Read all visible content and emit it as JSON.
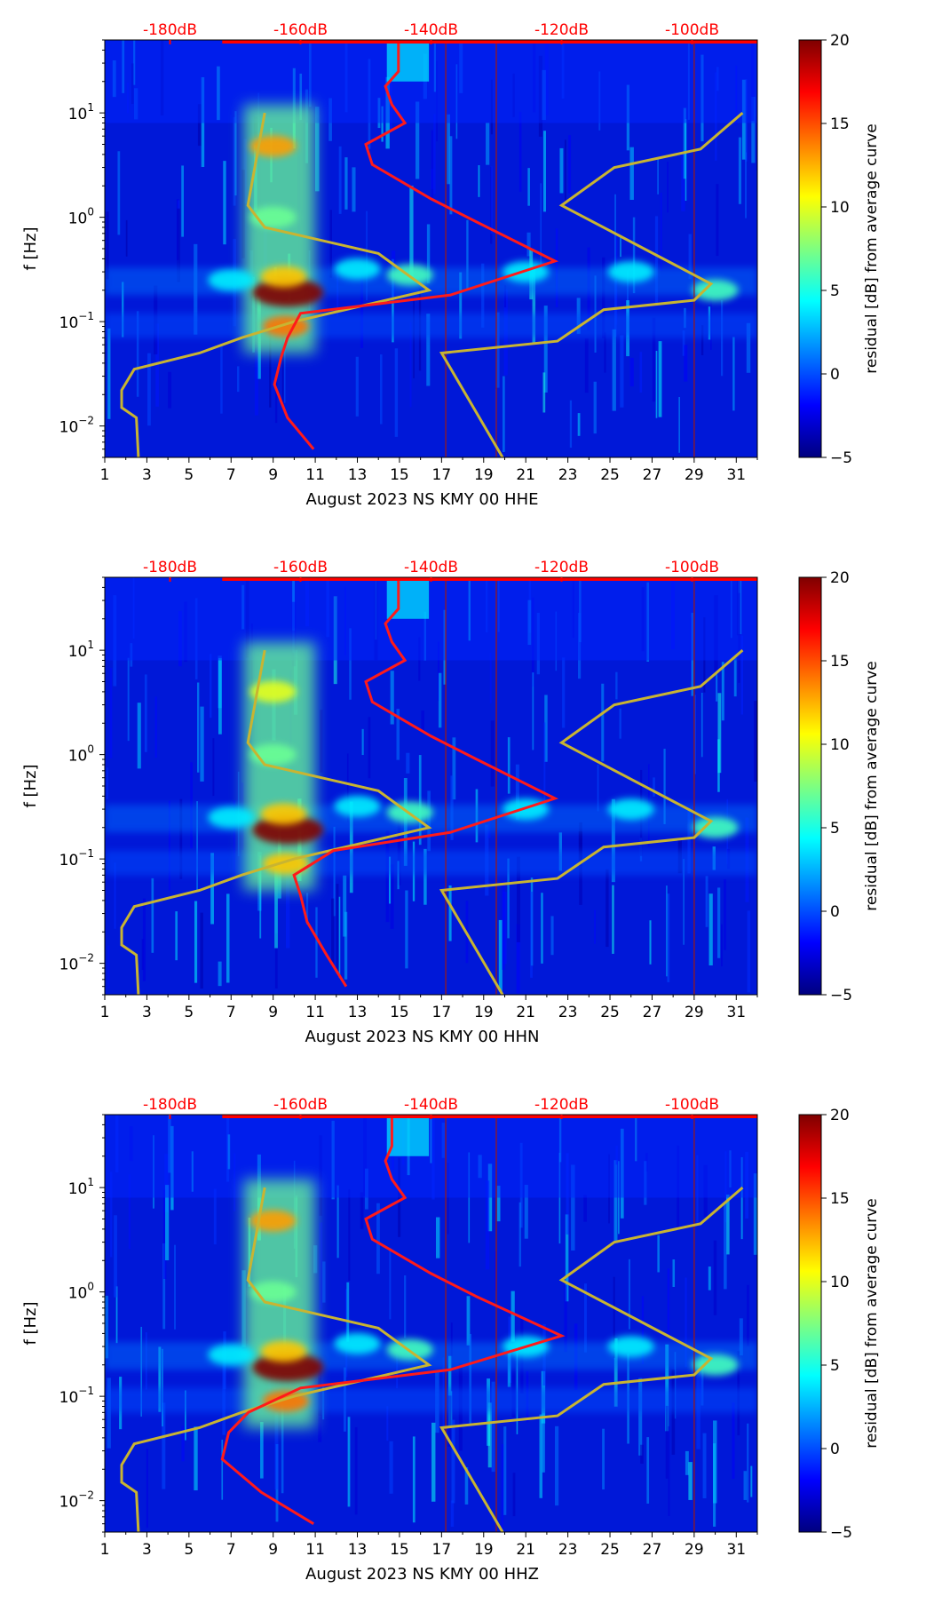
{
  "chart_data": [
    {
      "type": "heatmap",
      "xlabel": "August 2023 NS KMY 00 HHE",
      "ylabel": "f [Hz]",
      "colorbar_label": "residual [dB] from average curve",
      "x_ticks": [
        "1",
        "3",
        "5",
        "7",
        "9",
        "11",
        "13",
        "15",
        "17",
        "19",
        "21",
        "23",
        "25",
        "27",
        "29",
        "31"
      ],
      "xlim": [
        1,
        32
      ],
      "y_scale": "log",
      "ylim": [
        0.005,
        50
      ],
      "y_ticks": [
        {
          "base": "10",
          "exp": "1",
          "value": 10
        },
        {
          "base": "10",
          "exp": "0",
          "value": 1
        },
        {
          "base": "10",
          "exp": "−1",
          "value": 0.1
        },
        {
          "base": "10",
          "exp": "−2",
          "value": 0.01
        }
      ],
      "db_ticks": [
        "-180dB",
        "-160dB",
        "-140dB",
        "-120dB",
        "-100dB"
      ],
      "db_tick_values": [
        -180,
        -160,
        -140,
        -120,
        -100
      ],
      "db_range": [
        -190,
        -90
      ],
      "colorbar_ticks": [
        "20",
        "15",
        "10",
        "5",
        "0",
        "−5"
      ],
      "colorbar_values": [
        20,
        15,
        10,
        5,
        0,
        -5
      ],
      "clim": [
        -5,
        20
      ],
      "colormap": "jet",
      "red_curve": {
        "color": "#ff1a1a",
        "db": [
          -145,
          -145,
          -147,
          -146,
          -144,
          -150,
          -149,
          -140,
          -133,
          -121,
          -137,
          -160,
          -162,
          -163,
          -164,
          -162,
          -158
        ],
        "freq": [
          50,
          25,
          18,
          12,
          8,
          5,
          3.2,
          1.5,
          0.9,
          0.38,
          0.18,
          0.12,
          0.07,
          0.045,
          0.025,
          0.012,
          0.006
        ]
      },
      "olive_curve": {
        "color": "#c8b432",
        "points": [
          [
            8.6,
            10
          ],
          [
            7.8,
            1.3
          ],
          [
            8.6,
            0.8
          ],
          [
            14,
            0.45
          ],
          [
            16.4,
            0.2
          ],
          [
            10,
            0.1
          ],
          [
            7.5,
            0.07
          ],
          [
            5.5,
            0.05
          ],
          [
            2.4,
            0.035
          ],
          [
            1.8,
            0.022
          ],
          [
            1.8,
            0.015
          ],
          [
            2.5,
            0.012
          ],
          [
            2.6,
            0.005
          ]
        ]
      },
      "olive_curve2": {
        "color": "#c8b432",
        "points": [
          [
            31.3,
            10
          ],
          [
            29.3,
            4.5
          ],
          [
            25.2,
            3
          ],
          [
            22.7,
            1.3
          ],
          [
            29.8,
            0.23
          ],
          [
            29,
            0.16
          ],
          [
            24.7,
            0.13
          ],
          [
            22.5,
            0.065
          ],
          [
            17,
            0.05
          ],
          [
            19.9,
            0.005
          ]
        ]
      },
      "hotspots": [
        [
          9.7,
          0.19,
          20
        ],
        [
          9.5,
          0.27,
          12
        ],
        [
          9.6,
          0.09,
          14
        ],
        [
          9,
          4.8,
          13
        ],
        [
          9,
          1,
          7
        ],
        [
          7,
          0.25,
          4
        ],
        [
          15.5,
          0.28,
          6
        ],
        [
          13,
          0.32,
          4
        ],
        [
          21,
          0.3,
          4
        ],
        [
          26,
          0.3,
          4
        ],
        [
          30,
          0.2,
          6
        ]
      ]
    },
    {
      "type": "heatmap",
      "xlabel": "August 2023 NS KMY 00 HHN",
      "ylabel": "f [Hz]",
      "colorbar_label": "residual [dB] from average curve",
      "x_ticks": [
        "1",
        "3",
        "5",
        "7",
        "9",
        "11",
        "13",
        "15",
        "17",
        "19",
        "21",
        "23",
        "25",
        "27",
        "29",
        "31"
      ],
      "xlim": [
        1,
        32
      ],
      "y_scale": "log",
      "ylim": [
        0.005,
        50
      ],
      "y_ticks": [
        {
          "base": "10",
          "exp": "1",
          "value": 10
        },
        {
          "base": "10",
          "exp": "0",
          "value": 1
        },
        {
          "base": "10",
          "exp": "−1",
          "value": 0.1
        },
        {
          "base": "10",
          "exp": "−2",
          "value": 0.01
        }
      ],
      "db_ticks": [
        "-180dB",
        "-160dB",
        "-140dB",
        "-120dB",
        "-100dB"
      ],
      "db_tick_values": [
        -180,
        -160,
        -140,
        -120,
        -100
      ],
      "db_range": [
        -190,
        -90
      ],
      "colorbar_ticks": [
        "20",
        "15",
        "10",
        "5",
        "0",
        "−5"
      ],
      "colorbar_values": [
        20,
        15,
        10,
        5,
        0,
        -5
      ],
      "clim": [
        -5,
        20
      ],
      "colormap": "jet",
      "red_curve": {
        "color": "#ff1a1a",
        "db": [
          -145,
          -145,
          -147,
          -146,
          -144,
          -150,
          -149,
          -140,
          -133,
          -121,
          -137,
          -155,
          -161,
          -160,
          -159,
          -156,
          -153
        ],
        "freq": [
          50,
          25,
          18,
          12,
          8,
          5,
          3.2,
          1.5,
          0.9,
          0.38,
          0.18,
          0.12,
          0.07,
          0.045,
          0.025,
          0.012,
          0.006
        ]
      },
      "olive_curve": {
        "color": "#c8b432",
        "points": [
          [
            8.6,
            10
          ],
          [
            7.8,
            1.3
          ],
          [
            8.6,
            0.8
          ],
          [
            14,
            0.45
          ],
          [
            16.4,
            0.2
          ],
          [
            10,
            0.1
          ],
          [
            7.5,
            0.07
          ],
          [
            5.5,
            0.05
          ],
          [
            2.4,
            0.035
          ],
          [
            1.8,
            0.022
          ],
          [
            1.8,
            0.015
          ],
          [
            2.5,
            0.012
          ],
          [
            2.6,
            0.005
          ]
        ]
      },
      "olive_curve2": {
        "color": "#c8b432",
        "points": [
          [
            31.3,
            10
          ],
          [
            29.3,
            4.5
          ],
          [
            25.2,
            3
          ],
          [
            22.7,
            1.3
          ],
          [
            29.8,
            0.23
          ],
          [
            29,
            0.16
          ],
          [
            24.7,
            0.13
          ],
          [
            22.5,
            0.065
          ],
          [
            17,
            0.05
          ],
          [
            19.9,
            0.005
          ]
        ]
      },
      "hotspots": [
        [
          9.7,
          0.19,
          20
        ],
        [
          9.5,
          0.27,
          12
        ],
        [
          9.6,
          0.09,
          12
        ],
        [
          9,
          4,
          10
        ],
        [
          9,
          1,
          7
        ],
        [
          7,
          0.25,
          4
        ],
        [
          15.5,
          0.28,
          6
        ],
        [
          13,
          0.32,
          4
        ],
        [
          21,
          0.3,
          4
        ],
        [
          26,
          0.3,
          4
        ],
        [
          30,
          0.2,
          6
        ]
      ]
    },
    {
      "type": "heatmap",
      "xlabel": "August 2023 NS KMY 00 HHZ",
      "ylabel": "f [Hz]",
      "colorbar_label": "residual [dB] from average curve",
      "x_ticks": [
        "1",
        "3",
        "5",
        "7",
        "9",
        "11",
        "13",
        "15",
        "17",
        "19",
        "21",
        "23",
        "25",
        "27",
        "29",
        "31"
      ],
      "xlim": [
        1,
        32
      ],
      "y_scale": "log",
      "ylim": [
        0.005,
        50
      ],
      "y_ticks": [
        {
          "base": "10",
          "exp": "1",
          "value": 10
        },
        {
          "base": "10",
          "exp": "0",
          "value": 1
        },
        {
          "base": "10",
          "exp": "−1",
          "value": 0.1
        },
        {
          "base": "10",
          "exp": "−2",
          "value": 0.01
        }
      ],
      "db_ticks": [
        "-180dB",
        "-160dB",
        "-140dB",
        "-120dB",
        "-100dB"
      ],
      "db_tick_values": [
        -180,
        -160,
        -140,
        -120,
        -100
      ],
      "db_range": [
        -190,
        -90
      ],
      "colorbar_ticks": [
        "20",
        "15",
        "10",
        "5",
        "0",
        "−5"
      ],
      "colorbar_values": [
        20,
        15,
        10,
        5,
        0,
        -5
      ],
      "clim": [
        -5,
        20
      ],
      "colormap": "jet",
      "red_curve": {
        "color": "#ff1a1a",
        "db": [
          -146,
          -146,
          -147,
          -146,
          -144,
          -150,
          -149,
          -140,
          -133,
          -120,
          -137,
          -160,
          -168,
          -171,
          -172,
          -166,
          -158
        ],
        "freq": [
          50,
          25,
          18,
          12,
          8,
          5,
          3.2,
          1.5,
          0.9,
          0.38,
          0.18,
          0.12,
          0.07,
          0.045,
          0.025,
          0.012,
          0.006
        ]
      },
      "olive_curve": {
        "color": "#c8b432",
        "points": [
          [
            8.6,
            10
          ],
          [
            7.8,
            1.3
          ],
          [
            8.6,
            0.8
          ],
          [
            14,
            0.45
          ],
          [
            16.4,
            0.2
          ],
          [
            10,
            0.1
          ],
          [
            7.5,
            0.07
          ],
          [
            5.5,
            0.05
          ],
          [
            2.4,
            0.035
          ],
          [
            1.8,
            0.022
          ],
          [
            1.8,
            0.015
          ],
          [
            2.5,
            0.012
          ],
          [
            2.6,
            0.005
          ]
        ]
      },
      "olive_curve2": {
        "color": "#c8b432",
        "points": [
          [
            31.3,
            10
          ],
          [
            29.3,
            4.5
          ],
          [
            25.2,
            3
          ],
          [
            22.7,
            1.3
          ],
          [
            29.8,
            0.23
          ],
          [
            29,
            0.16
          ],
          [
            24.7,
            0.13
          ],
          [
            22.5,
            0.065
          ],
          [
            17,
            0.05
          ],
          [
            19.9,
            0.005
          ]
        ]
      },
      "hotspots": [
        [
          9.7,
          0.19,
          20
        ],
        [
          9.5,
          0.27,
          12
        ],
        [
          9.6,
          0.09,
          14
        ],
        [
          9,
          4.8,
          13
        ],
        [
          9,
          1,
          7
        ],
        [
          7,
          0.25,
          4
        ],
        [
          15.5,
          0.28,
          6
        ],
        [
          13,
          0.32,
          4
        ],
        [
          21,
          0.3,
          4
        ],
        [
          26,
          0.3,
          4
        ],
        [
          30,
          0.2,
          6
        ]
      ]
    }
  ]
}
